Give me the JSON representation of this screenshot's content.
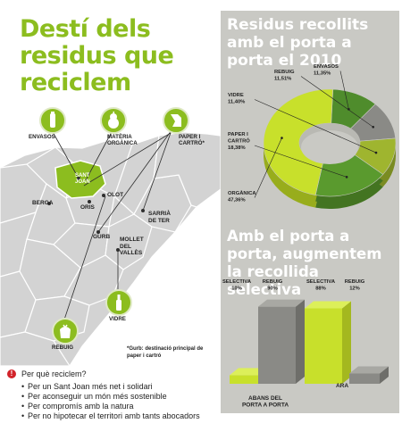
{
  "title": "Destí dels residus que reciclem",
  "map": {
    "icons": [
      {
        "label": "ENVASOS"
      },
      {
        "label": "MATÈRIA ORGÀNICA"
      },
      {
        "label": "PAPER I CARTRÓ*"
      },
      {
        "label": "VIDRE"
      },
      {
        "label": "REBUIG"
      }
    ],
    "places": {
      "sant_joan": "SANT JOAN",
      "olot": "OLOT",
      "berga": "BERGA",
      "gurb": "GURB",
      "mollet": "MOLLET DEL VALLÈS",
      "sarria": "SARRIÀ DE TER",
      "orris": "ORIS"
    }
  },
  "footnote": "*Gurb: destinació principal de paper i cartró",
  "questions": {
    "title": "Per què reciclem?",
    "items": [
      "Per un Sant Joan més net i solidari",
      "Per aconseguir un món més sostenible",
      "Per compromís amb la natura",
      "Per no hipotecar el territori amb tants abocadors"
    ]
  },
  "colors": {
    "green": "#8cbd1f",
    "lime": "#c8e02b",
    "dark_green": "#4f8c2c",
    "olive": "#9fb52f",
    "gray": "#8a8a86",
    "panel": "#c9c9c4",
    "alert_red": "#d2232a"
  },
  "chart_data": [
    {
      "type": "pie",
      "title": "Residus recollits amb el porta a porta el 2010",
      "labels": [
        "ENVASOS",
        "REBUIG",
        "VIDRE",
        "PAPER I CARTRÓ",
        "ORGÀNICA"
      ],
      "values": [
        11.35,
        11.51,
        11.4,
        18.38,
        47.36
      ],
      "value_labels": [
        "11,35%",
        "11,51%",
        "11,40%",
        "18,38%",
        "47,36%"
      ],
      "legend": "labels beside slices"
    },
    {
      "type": "bar",
      "title": "Amb el porta a porta, augmentem la recollida selectiva",
      "categories": [
        "ABANS DEL PORTA A PORTA",
        "ARA"
      ],
      "series": [
        {
          "name": "SELECTIVA",
          "values": [
            10,
            88
          ],
          "value_labels": [
            "10%",
            "88%"
          ]
        },
        {
          "name": "REBUIG",
          "values": [
            90,
            12
          ],
          "value_labels": [
            "90%",
            "12%"
          ]
        }
      ],
      "ylim": [
        0,
        100
      ]
    }
  ]
}
